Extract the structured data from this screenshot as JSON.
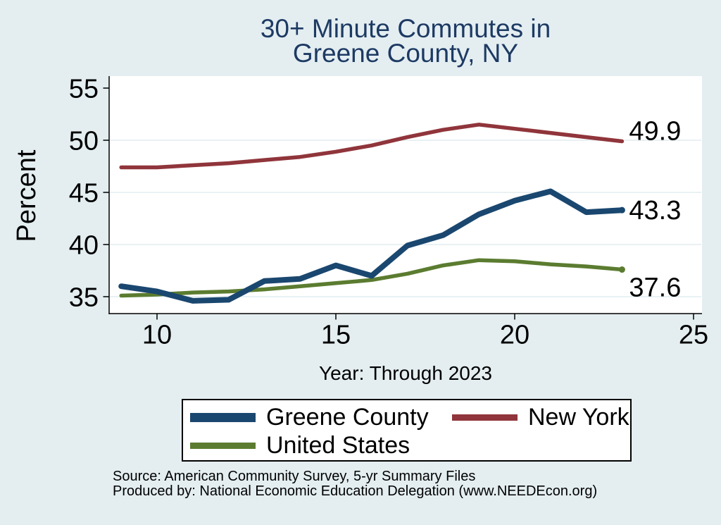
{
  "title": {
    "line1": "30+ Minute Commutes in",
    "line2": "Greene County, NY"
  },
  "chart_data": {
    "type": "line",
    "title": "30+ Minute Commutes in Greene County, NY",
    "title_lines": [
      "30+ Minute Commutes in",
      "Greene County, NY"
    ],
    "xlabel": "Year: Through 2023",
    "ylabel": "Percent",
    "x": [
      2009,
      2010,
      2011,
      2012,
      2013,
      2014,
      2015,
      2016,
      2017,
      2018,
      2019,
      2020,
      2021,
      2022,
      2023
    ],
    "x_ticks": [
      {
        "value": 2010,
        "label": "10"
      },
      {
        "value": 2015,
        "label": "15"
      },
      {
        "value": 2020,
        "label": "20"
      },
      {
        "value": 2025,
        "label": "25"
      }
    ],
    "y_ticks": [
      35,
      40,
      45,
      50,
      55
    ],
    "y_gridlines": [
      35,
      40,
      45,
      50
    ],
    "xlim": [
      2008.65,
      2025.25
    ],
    "ylim": [
      33.4,
      56.2
    ],
    "grid": true,
    "legend_position": "bottom",
    "series": [
      {
        "name": "Greene County",
        "color": "#1a476f",
        "line_width": 8,
        "end_label": "43.3",
        "end_marker": true,
        "values": [
          36.0,
          35.5,
          34.6,
          34.7,
          36.5,
          36.7,
          38.0,
          37.0,
          39.9,
          40.9,
          42.9,
          44.2,
          45.1,
          43.1,
          43.3
        ]
      },
      {
        "name": "New York",
        "color": "#90353b",
        "line_width": 5.5,
        "end_label": "49.9",
        "end_marker": false,
        "values": [
          47.4,
          47.4,
          47.6,
          47.8,
          48.1,
          48.4,
          48.9,
          49.5,
          50.3,
          51.0,
          51.5,
          51.1,
          50.7,
          50.3,
          49.9
        ]
      },
      {
        "name": "United States",
        "color": "#5b7c30",
        "line_width": 5.5,
        "end_label": "37.6",
        "end_marker": true,
        "values": [
          35.1,
          35.2,
          35.4,
          35.5,
          35.7,
          36.0,
          36.3,
          36.6,
          37.2,
          38.0,
          38.5,
          38.4,
          38.1,
          37.9,
          37.6
        ]
      }
    ]
  },
  "source": {
    "line1": "Source: American Community Survey, 5-yr Summary Files",
    "line2": "Produced by: National Economic Education Delegation (www.NEEDEcon.org)"
  },
  "colors": {
    "background": "#e4eef1",
    "plot_background": "#ffffff",
    "gridline": "#e6eff2",
    "axis": "#000000",
    "title": "#1d3a63",
    "text": "#000000"
  }
}
